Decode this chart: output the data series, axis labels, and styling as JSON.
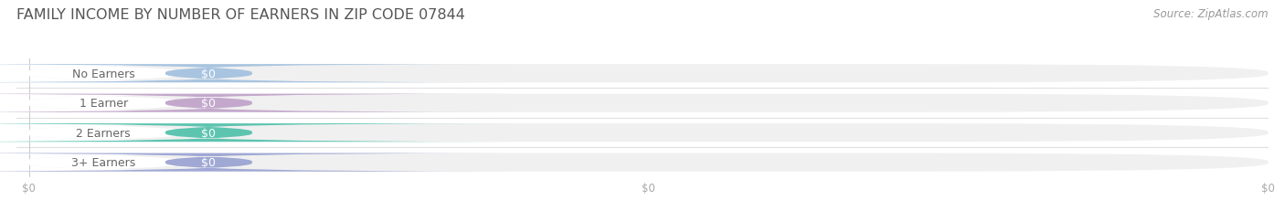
{
  "title": "FAMILY INCOME BY NUMBER OF EARNERS IN ZIP CODE 07844",
  "source": "Source: ZipAtlas.com",
  "categories": [
    "No Earners",
    "1 Earner",
    "2 Earners",
    "3+ Earners"
  ],
  "values": [
    0,
    0,
    0,
    0
  ],
  "bar_colors": [
    "#a8c4e0",
    "#c4a8cc",
    "#5dc4b0",
    "#a0a8d4"
  ],
  "bg_bar_color": "#f0f0f0",
  "label_text_color": "#666666",
  "value_text_color": "#ffffff",
  "title_color": "#555555",
  "source_color": "#999999",
  "tick_color": "#aaaaaa",
  "title_fontsize": 11.5,
  "label_fontsize": 9,
  "source_fontsize": 8.5,
  "tick_fontsize": 8.5,
  "background_color": "#ffffff",
  "separator_color": "#e0e0e0",
  "xlim_max": 1.0,
  "xtick_positions": [
    0,
    0.5,
    1.0
  ],
  "xtick_labels": [
    "$0",
    "$0",
    "$0"
  ]
}
